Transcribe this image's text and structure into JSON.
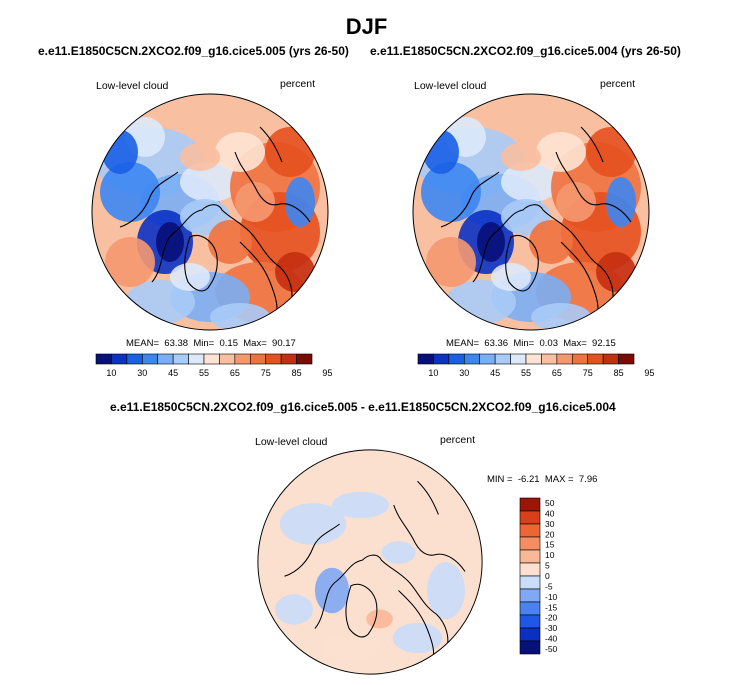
{
  "page": {
    "title": "DJF",
    "diff_title": "e.e11.E1850C5CN.2XCO2.f09_g16.cice5.005 - e.e11.E1850C5CN.2XCO2.f09_g16.cice5.004"
  },
  "colors": {
    "blue_red_14": [
      "#08107a",
      "#0b32c4",
      "#1a5fe6",
      "#3d86f2",
      "#7aaef5",
      "#a9cbf7",
      "#dde9fb",
      "#fde3d3",
      "#f9bfa1",
      "#f59870",
      "#f07240",
      "#e6501f",
      "#c52e10",
      "#7a0c05"
    ],
    "diff_12": [
      "#08107a",
      "#0b2fc0",
      "#1f58e6",
      "#4a82f0",
      "#7fa9f4",
      "#c9dcf9",
      "#fce0cf",
      "#f9b896",
      "#f48e62",
      "#ee6534",
      "#d8401a",
      "#9c1606"
    ]
  },
  "panels": [
    {
      "case": "e.e11.E1850C5CN.2XCO2.f09_g16.cice5.005 (yrs 26-50)",
      "variable": "Low-level cloud",
      "units": "percent",
      "mean_label": "MEAN=",
      "mean_value": "63.38",
      "min_label": "Min=",
      "min_value": "0.15",
      "max_label": "Max=",
      "max_value": "90.17"
    },
    {
      "case": "e.e11.E1850C5CN.2XCO2.f09_g16.cice5.004 (yrs 26-50)",
      "variable": "Low-level cloud",
      "units": "percent",
      "mean_label": "MEAN=",
      "mean_value": "63.36",
      "min_label": "Min=",
      "min_value": "0.03",
      "max_label": "Max=",
      "max_value": "92.15"
    }
  ],
  "diff_panel": {
    "variable": "Low-level cloud",
    "units": "percent",
    "min_label": "MIN =",
    "min_value": "-6.21",
    "max_label": "MAX =",
    "max_value": "7.96"
  },
  "chart_data": [
    {
      "type": "heatmap",
      "projection": "north-polar-stereographic",
      "title": "e.e11.E1850C5CN.2XCO2.f09_g16.cice5.005 (yrs 26-50)",
      "variable": "Low-level cloud",
      "units": "percent",
      "colorbar_ticks": [
        "10",
        "30",
        "45",
        "55",
        "65",
        "75",
        "85",
        "95"
      ],
      "colorbar_bins": 14,
      "colorbar_orientation": "horizontal",
      "mean": 63.38,
      "min": 0.15,
      "max": 90.17
    },
    {
      "type": "heatmap",
      "projection": "north-polar-stereographic",
      "title": "e.e11.E1850C5CN.2XCO2.f09_g16.cice5.004 (yrs 26-50)",
      "variable": "Low-level cloud",
      "units": "percent",
      "colorbar_ticks": [
        "10",
        "30",
        "45",
        "55",
        "65",
        "75",
        "85",
        "95"
      ],
      "colorbar_bins": 14,
      "colorbar_orientation": "horizontal",
      "mean": 63.36,
      "min": 0.03,
      "max": 92.15
    },
    {
      "type": "heatmap",
      "projection": "north-polar-stereographic",
      "title": "e.e11.E1850C5CN.2XCO2.f09_g16.cice5.005 - e.e11.E1850C5CN.2XCO2.f09_g16.cice5.004",
      "variable": "Low-level cloud",
      "units": "percent",
      "colorbar_ticks": [
        "50",
        "40",
        "30",
        "20",
        "15",
        "10",
        "5",
        "0",
        "-5",
        "-10",
        "-15",
        "-20",
        "-30",
        "-40",
        "-50"
      ],
      "colorbar_bins": 12,
      "colorbar_orientation": "vertical",
      "min": -6.21,
      "max": 7.96
    }
  ]
}
